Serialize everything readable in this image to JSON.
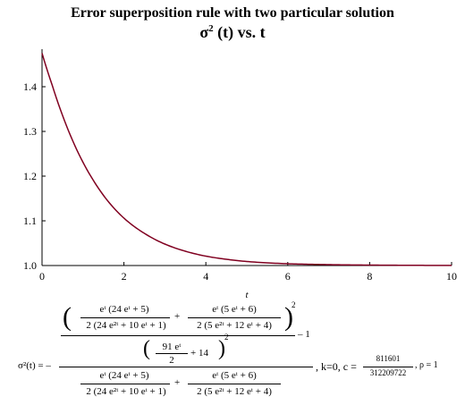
{
  "title": "Error superposition rule with two particular solution",
  "subtitle": {
    "sigma": "σ",
    "power": "2",
    "rest": "(t) vs. t"
  },
  "chart_data": {
    "type": "line",
    "xlabel": "t",
    "ylabel": "",
    "xlim": [
      0,
      10
    ],
    "ylim": [
      1.0,
      1.48
    ],
    "grid": false,
    "x_ticks": [
      "0",
      "2",
      "4",
      "6",
      "8",
      "10"
    ],
    "y_ticks": [
      "1.0",
      "1.1",
      "1.2",
      "1.3",
      "1.4"
    ],
    "line_color": "#800020",
    "series": [
      {
        "x": [
          0,
          0.25,
          0.5,
          0.75,
          1,
          1.25,
          1.5,
          1.75,
          2,
          2.5,
          3,
          3.5,
          4,
          4.5,
          5,
          6,
          7,
          8,
          9,
          10
        ],
        "values": [
          1.475,
          1.403,
          1.336,
          1.279,
          1.231,
          1.191,
          1.157,
          1.129,
          1.106,
          1.072,
          1.048,
          1.032,
          1.021,
          1.014,
          1.009,
          1.004,
          1.002,
          1.001,
          1.0005,
          1.0002
        ]
      }
    ]
  },
  "formula": {
    "lhs": "σ²(t) = –",
    "frac1_num": "eᵗ (24 eᵗ + 5)",
    "frac1_den": "2 (24 e²ᵗ + 10 eᵗ + 1)",
    "plus": "+",
    "frac2_num": "eᵗ (5 eᵗ + 6)",
    "frac2_den": "2 (5 e²ᵗ + 12 eᵗ + 4)",
    "sq": "2",
    "minus_one": "– 1",
    "mid_num": "91 eᵗ",
    "mid_den": "2",
    "mid_plus": "+ 14",
    "params_k": ", k=0, c =",
    "c_num": "811601",
    "c_den": "312209722",
    "rho": ", ρ = 1"
  }
}
